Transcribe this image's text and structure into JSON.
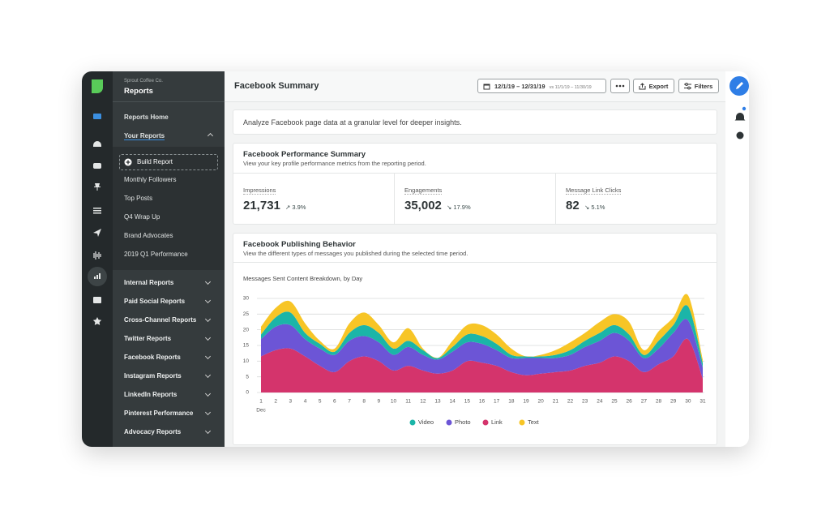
{
  "sidebar": {
    "org": "Sprout Coffee Co.",
    "title": "Reports",
    "home": "Reports Home",
    "your_reports": "Your Reports",
    "build": "Build Report",
    "items": [
      "Monthly Followers",
      "Top Posts",
      "Q4 Wrap Up",
      "Brand Advocates",
      "2019 Q1 Performance"
    ],
    "sections": [
      "Internal Reports",
      "Paid Social Reports",
      "Cross-Channel Reports",
      "Twitter Reports",
      "Facebook Reports",
      "Instagram Reports",
      "LinkedIn Reports",
      "Pinterest Performance",
      "Advocacy Reports"
    ]
  },
  "header": {
    "title": "Facebook Summary",
    "date_range": "12/1/19 – 12/31/19",
    "compare": "vs 11/1/19 – 11/30/19",
    "export": "Export",
    "filters": "Filters"
  },
  "intro": "Analyze Facebook page data at a granular level for deeper insights.",
  "summary": {
    "title": "Facebook Performance Summary",
    "subtitle": "View your key profile performance metrics from the reporting period.",
    "metrics": [
      {
        "label": "Impressions",
        "value": "21,731",
        "change": "↗ 3.9%"
      },
      {
        "label": "Engagements",
        "value": "35,002",
        "change": "↘ 17.9%"
      },
      {
        "label": "Message Link Clicks",
        "value": "82",
        "change": "↘ 5.1%"
      }
    ]
  },
  "publishing": {
    "title": "Facebook Publishing Behavior",
    "subtitle": "View the different types of messages you published during the selected time period."
  },
  "chart_data": {
    "type": "stacked_area",
    "title": "Messages Sent Content Breakdown, by Day",
    "x_period_label": "Dec",
    "categories": [
      "1",
      "2",
      "3",
      "4",
      "5",
      "6",
      "7",
      "8",
      "9",
      "10",
      "11",
      "12",
      "13",
      "14",
      "15",
      "16",
      "17",
      "18",
      "19",
      "20",
      "21",
      "22",
      "23",
      "24",
      "25",
      "26",
      "27",
      "28",
      "29",
      "30",
      "31"
    ],
    "series": [
      {
        "name": "Link",
        "color": "#d4346c",
        "values": [
          11.5,
          13.5,
          14,
          11.5,
          8.5,
          6.5,
          10,
          11.5,
          10,
          7,
          8.5,
          7,
          6,
          7,
          10,
          9.5,
          8.5,
          6.5,
          5.5,
          6,
          6.5,
          7,
          8.5,
          9.5,
          11.5,
          10,
          6.5,
          9,
          11.5,
          17,
          4.5
        ]
      },
      {
        "name": "Photo",
        "color": "#6c55d6",
        "values": [
          5.5,
          7.5,
          7.5,
          5.5,
          5.5,
          5.5,
          6.5,
          6.5,
          6,
          5,
          6,
          5,
          4.5,
          6,
          6,
          6,
          5,
          4.5,
          5.5,
          5,
          4.5,
          5,
          6,
          7,
          7.5,
          6.5,
          4.5,
          5,
          7.5,
          6,
          3.5
        ]
      },
      {
        "name": "Video",
        "color": "#1bb5a8",
        "values": [
          1.5,
          3,
          4,
          2,
          1.5,
          1,
          2.5,
          3.5,
          3,
          2,
          2,
          1.5,
          0.5,
          1.5,
          2.5,
          2.5,
          2,
          1,
          0.5,
          0.5,
          1,
          1.5,
          2,
          2.5,
          2.5,
          2,
          1,
          2.5,
          2.5,
          4.5,
          1.5
        ]
      },
      {
        "name": "Text",
        "color": "#f7c526",
        "values": [
          2.5,
          3,
          3.5,
          3,
          1,
          1,
          3,
          4,
          2.5,
          2,
          4,
          0.5,
          0,
          2,
          3,
          3.5,
          3,
          2,
          0,
          0.5,
          1.5,
          2.5,
          2.5,
          3.5,
          3.5,
          4,
          1.5,
          3,
          2.5,
          3.5,
          1
        ]
      }
    ],
    "ylim": [
      0,
      32
    ],
    "yticks": [
      0,
      5,
      10,
      15,
      20,
      25,
      30
    ],
    "grid": true
  }
}
